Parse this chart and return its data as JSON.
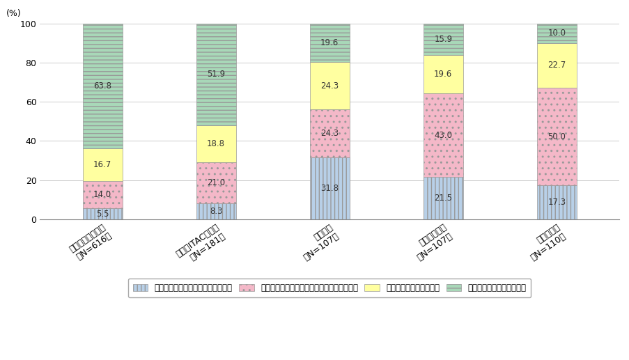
{
  "categories": [
    "日本（一般）企業\n（N=616）",
    "日本（ITAC）企業\n（N=181）",
    "米国企業\n（N=107）",
    "イギリス企業\n（N=107）",
    "ドイツ企業\n（N=110）"
  ],
  "series": [
    {
      "label": "具体的な内容も含めて、知っている",
      "values": [
        5.5,
        8.3,
        31.8,
        21.5,
        17.3
      ],
      "color": "#b8d0e8",
      "hatch": "|||"
    },
    {
      "label": "知っているが、具体的な内容までは知らない",
      "values": [
        14.0,
        21.0,
        24.3,
        43.0,
        50.0
      ],
      "color": "#f4b8c8",
      "hatch": ".."
    },
    {
      "label": "名前は聞いたことがある",
      "values": [
        16.7,
        18.8,
        24.3,
        19.6,
        22.7
      ],
      "color": "#ffffa0",
      "hatch": ""
    },
    {
      "label": "知らない（初めて聞いた）",
      "values": [
        63.8,
        51.9,
        19.6,
        15.9,
        10.0
      ],
      "color": "#a8d8b8",
      "hatch": "---"
    }
  ],
  "ylabel": "(%)",
  "ylim": [
    0,
    100
  ],
  "yticks": [
    0,
    20,
    40,
    60,
    80,
    100
  ],
  "bar_width": 0.35,
  "figure_bg": "#ffffff",
  "axes_bg": "#ffffff",
  "grid_color": "#cccccc",
  "label_fontsize": 8.5,
  "tick_fontsize": 9,
  "legend_fontsize": 8.5
}
